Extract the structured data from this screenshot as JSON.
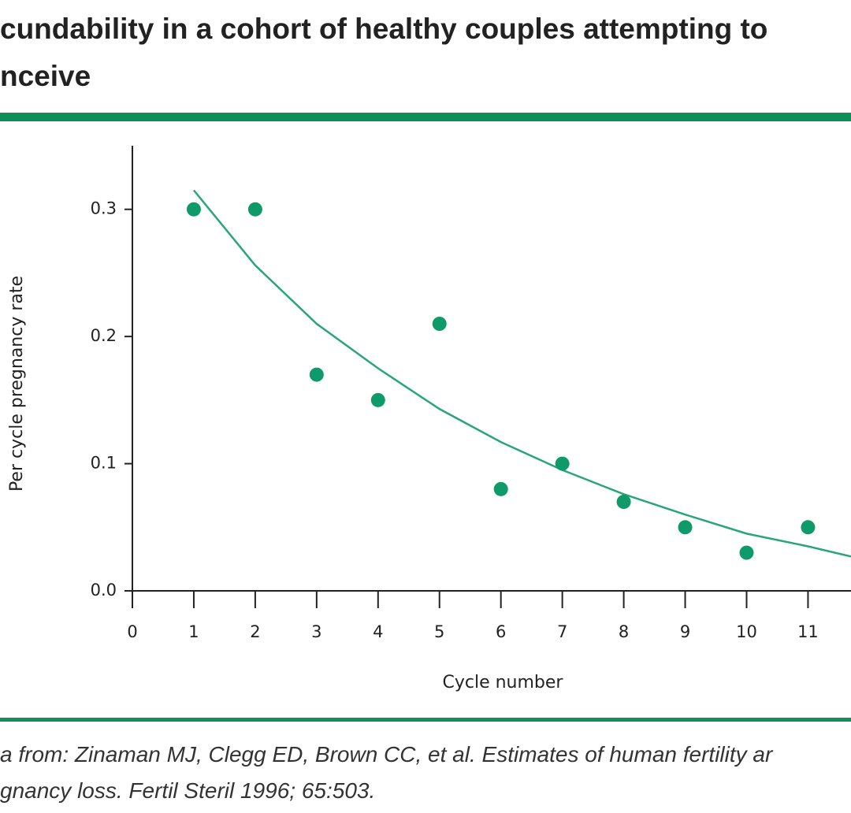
{
  "chart_data": {
    "type": "scatter",
    "title_lines": [
      "cundability in a cohort of healthy couples attempting to",
      "nceive"
    ],
    "x_label": "Cycle number",
    "y_label": "Per cycle pregnancy rate",
    "caption_lines": [
      "a from: Zinaman MJ, Clegg ED, Brown CC, et al. Estimates of human fertility ar",
      "gnancy loss. Fertil Steril 1996; 65:503."
    ],
    "accent_color": "#0e8f5a",
    "series": [
      {
        "mode": "markers",
        "color": "#0f9a6a",
        "x": [
          1,
          2,
          3,
          4,
          5,
          6,
          7,
          8,
          9,
          10,
          11
        ],
        "values": [
          0.3,
          0.3,
          0.17,
          0.15,
          0.21,
          0.08,
          0.1,
          0.07,
          0.05,
          0.03,
          0.05
        ]
      },
      {
        "mode": "line",
        "color": "#2aa57a",
        "x": [
          1,
          2,
          3,
          4,
          5,
          6,
          7,
          8,
          9,
          10,
          11,
          11.7
        ],
        "values": [
          0.315,
          0.256,
          0.21,
          0.175,
          0.143,
          0.117,
          0.095,
          0.076,
          0.06,
          0.045,
          0.035,
          0.027
        ]
      }
    ],
    "xlim": [
      0,
      11.7
    ],
    "xticks": [
      0,
      1,
      2,
      3,
      4,
      5,
      6,
      7,
      8,
      9,
      10,
      11
    ],
    "ylim": [
      0,
      0.35
    ],
    "yticks": [
      {
        "value": 0,
        "label": "0.0"
      },
      0.1,
      0.2,
      0.3
    ]
  }
}
